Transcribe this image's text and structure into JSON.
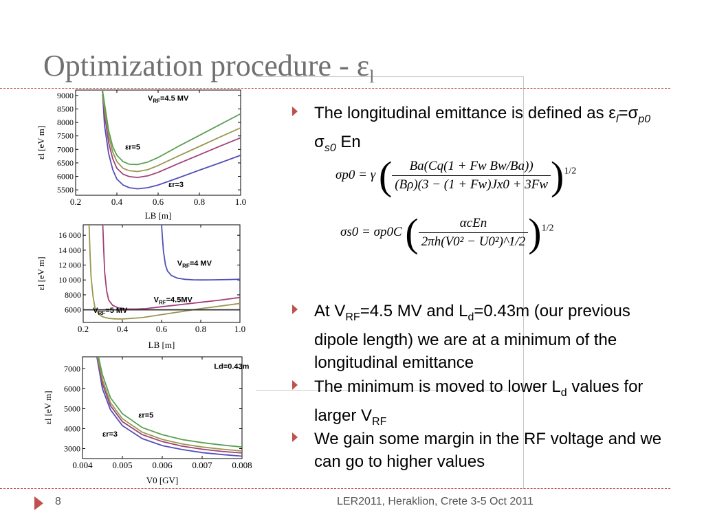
{
  "slide": {
    "title": "Optimization procedure - ε",
    "title_sub": "l",
    "page_number": "8",
    "footer": "LER2011, Heraklion, Crete   3-5 Oct 2011"
  },
  "bullets": [
    {
      "segments": [
        {
          "t": "The longitudinal emittance is defined as ε"
        },
        {
          "t": "l",
          "s": "sub-i"
        },
        {
          "t": "=σ"
        },
        {
          "t": "p0",
          "s": "sub-i"
        },
        {
          "t": " σ"
        },
        {
          "t": "s0",
          "s": "sub-i"
        },
        {
          "t": " En"
        }
      ]
    },
    {
      "segments": [
        {
          "t": "At V"
        },
        {
          "t": "RF",
          "s": "sub"
        },
        {
          "t": "=4.5 MV and L"
        },
        {
          "t": "d",
          "s": "sub"
        },
        {
          "t": "=0.43m (our previous dipole length) we are at a minimum of the longitudinal emittance"
        }
      ]
    },
    {
      "segments": [
        {
          "t": "The minimum is moved to lower L"
        },
        {
          "t": "d",
          "s": "sub"
        },
        {
          "t": " values for larger V"
        },
        {
          "t": "RF",
          "s": "sub"
        }
      ]
    },
    {
      "segments": [
        {
          "t": "We gain some margin in the RF voltage and we can go to higher values"
        }
      ]
    }
  ],
  "formulas": {
    "sigma_p0": {
      "lhs": "σp0 = γ",
      "num": "Ba(Cq(1 + Fw Bw/Ba))",
      "den": "(Bρ)(3 − (1 + Fw)Jx0 + 3Fw",
      "exp": "1/2"
    },
    "sigma_s0": {
      "lhs": "σs0 = σp0C",
      "num": "αcEn",
      "den": "2πh(V0² − U0²)^1/2",
      "exp": "1/2"
    }
  },
  "colors": {
    "title": "#707070",
    "accent": "#c0504d",
    "blue": "#5050b8",
    "magenta": "#a04078",
    "olive": "#9a9650",
    "green": "#58a050",
    "dark": "#303030"
  },
  "chart_data": [
    {
      "type": "line",
      "xlabel": "LB [m]",
      "ylabel": "εl [eV m]",
      "xlim": [
        0.2,
        1.0
      ],
      "ylim": [
        5300,
        9200
      ],
      "xticks": [
        0.2,
        0.4,
        0.6,
        0.8,
        1.0
      ],
      "xticklabels": [
        "0.2",
        "0.4",
        "0.6",
        "0.8",
        "1.0"
      ],
      "yticks": [
        5500,
        6000,
        6500,
        7000,
        7500,
        8000,
        8500,
        9000
      ],
      "yticklabels": [
        "5500",
        "6000",
        "6500",
        "7000",
        "7500",
        "8000",
        "8500",
        "9000"
      ],
      "series": [
        {
          "color": "#5050b8",
          "x": [
            0.33,
            0.34,
            0.36,
            0.38,
            0.4,
            0.43,
            0.46,
            0.5,
            0.55,
            0.6,
            0.7,
            0.8,
            0.9,
            1.0
          ],
          "values": [
            9200,
            7900,
            6850,
            6250,
            5900,
            5680,
            5580,
            5540,
            5580,
            5680,
            5950,
            6230,
            6500,
            6780
          ]
        },
        {
          "color": "#a04078",
          "x": [
            0.33,
            0.34,
            0.36,
            0.38,
            0.4,
            0.43,
            0.46,
            0.5,
            0.55,
            0.6,
            0.7,
            0.8,
            0.9,
            1.0
          ],
          "values": [
            9200,
            8300,
            7250,
            6650,
            6300,
            6080,
            5990,
            5960,
            6020,
            6150,
            6480,
            6800,
            7120,
            7430
          ]
        },
        {
          "color": "#9a9650",
          "x": [
            0.33,
            0.34,
            0.36,
            0.38,
            0.4,
            0.43,
            0.46,
            0.5,
            0.55,
            0.6,
            0.7,
            0.8,
            0.9,
            1.0
          ],
          "values": [
            9200,
            8500,
            7500,
            6900,
            6550,
            6300,
            6210,
            6180,
            6250,
            6400,
            6760,
            7110,
            7460,
            7800
          ]
        },
        {
          "color": "#58a050",
          "x": [
            0.33,
            0.34,
            0.36,
            0.38,
            0.4,
            0.43,
            0.46,
            0.5,
            0.55,
            0.6,
            0.7,
            0.8,
            0.9,
            1.0
          ],
          "values": [
            9200,
            8700,
            7700,
            7100,
            6780,
            6550,
            6450,
            6440,
            6530,
            6700,
            7120,
            7520,
            7920,
            8320
          ]
        }
      ],
      "annotations": [
        {
          "text": "VRF=4.5 MV",
          "main": "V",
          "sub": "RF",
          "rest": "=4.5 MV",
          "x": 0.55,
          "y": 8800
        },
        {
          "text": "εr=5",
          "x": 0.44,
          "y": 7000
        },
        {
          "text": "εr=3",
          "x": 0.65,
          "y": 5600
        }
      ]
    },
    {
      "type": "line",
      "xlabel": "LB [m]",
      "ylabel": "εl [eV m]",
      "xlim": [
        0.2,
        1.0
      ],
      "ylim": [
        4300,
        17400
      ],
      "xticks": [
        0.2,
        0.4,
        0.6,
        0.8,
        1.0
      ],
      "xticklabels": [
        "0.2",
        "0.4",
        "0.6",
        "0.8",
        "1.0"
      ],
      "yticks": [
        6000,
        8000,
        10000,
        12000,
        14000,
        16000
      ],
      "yticklabels": [
        "6000",
        "8000",
        "10 000",
        "12 000",
        "14 000",
        "16 000"
      ],
      "series": [
        {
          "color": "#9a9650",
          "x": [
            0.23,
            0.235,
            0.24,
            0.25,
            0.26,
            0.28,
            0.3,
            0.33,
            0.36,
            0.4,
            0.5,
            0.6,
            0.7,
            0.8,
            0.9,
            1.0
          ],
          "values": [
            17400,
            13500,
            10500,
            7800,
            6300,
            5400,
            5050,
            4850,
            4780,
            4760,
            4950,
            5350,
            5750,
            6150,
            6500,
            6850
          ]
        },
        {
          "color": "#a04078",
          "x": [
            0.3,
            0.305,
            0.31,
            0.32,
            0.33,
            0.35,
            0.38,
            0.42,
            0.47,
            0.52,
            0.6,
            0.7,
            0.8,
            0.9,
            1.0
          ],
          "values": [
            17400,
            14000,
            11000,
            8500,
            7300,
            6600,
            6250,
            6100,
            6100,
            6150,
            6400,
            6700,
            7000,
            7300,
            7650
          ]
        },
        {
          "color": "#5050b8",
          "x": [
            0.6,
            0.605,
            0.61,
            0.62,
            0.63,
            0.65,
            0.68,
            0.72,
            0.76,
            0.8,
            0.85,
            0.9,
            0.95,
            1.0
          ],
          "values": [
            17400,
            15500,
            13800,
            12000,
            11200,
            10600,
            10250,
            10080,
            10020,
            10000,
            10010,
            10030,
            10060,
            10100
          ]
        },
        {
          "color": "#303030",
          "x": [
            0.2,
            1.0
          ],
          "values": [
            6000,
            6000
          ]
        }
      ],
      "annotations": [
        {
          "text": "VRF=4 MV",
          "main": "V",
          "sub": "RF",
          "rest": "=4 MV",
          "x": 0.68,
          "y": 11900
        },
        {
          "text": "VRF=4.5MV",
          "main": "V",
          "sub": "RF",
          "rest": "=4.5MV",
          "x": 0.56,
          "y": 7000
        },
        {
          "text": "VRF=5 MV",
          "main": "V",
          "sub": "RF",
          "rest": "=5 MV",
          "x": 0.25,
          "y": 5600
        }
      ]
    },
    {
      "type": "line",
      "xlabel": "V0 [GV]",
      "ylabel": "εl [eV m]",
      "xlim": [
        0.004,
        0.008
      ],
      "ylim": [
        2500,
        7600
      ],
      "xticks": [
        0.004,
        0.005,
        0.006,
        0.007,
        0.008
      ],
      "xticklabels": [
        "0.004",
        "0.005",
        "0.006",
        "0.007",
        "0.008"
      ],
      "yticks": [
        3000,
        4000,
        5000,
        6000,
        7000
      ],
      "yticklabels": [
        "3000",
        "4000",
        "5000",
        "6000",
        "7000"
      ],
      "series": [
        {
          "color": "#5050b8",
          "x": [
            0.00436,
            0.0045,
            0.0047,
            0.005,
            0.0055,
            0.006,
            0.0065,
            0.007,
            0.0075,
            0.008
          ],
          "values": [
            7600,
            6000,
            4950,
            4150,
            3500,
            3150,
            2950,
            2800,
            2700,
            2620
          ]
        },
        {
          "color": "#a04078",
          "x": [
            0.00437,
            0.0045,
            0.0047,
            0.005,
            0.0055,
            0.006,
            0.0065,
            0.007,
            0.0075,
            0.008
          ],
          "values": [
            7600,
            6250,
            5150,
            4350,
            3700,
            3350,
            3120,
            2970,
            2860,
            2780
          ]
        },
        {
          "color": "#9a9650",
          "x": [
            0.00438,
            0.0045,
            0.0047,
            0.005,
            0.0055,
            0.006,
            0.0065,
            0.007,
            0.0075,
            0.008
          ],
          "values": [
            7600,
            6450,
            5300,
            4500,
            3820,
            3460,
            3230,
            3080,
            2970,
            2880
          ]
        },
        {
          "color": "#58a050",
          "x": [
            0.0044,
            0.0045,
            0.0047,
            0.005,
            0.0055,
            0.006,
            0.0065,
            0.007,
            0.0075,
            0.008
          ],
          "values": [
            7600,
            6700,
            5550,
            4750,
            4050,
            3700,
            3450,
            3300,
            3180,
            3080
          ]
        }
      ],
      "annotations": [
        {
          "text": "Ld=0.43m",
          "x": 0.0073,
          "y": 7000
        },
        {
          "text": "εr=5",
          "x": 0.0054,
          "y": 4550
        },
        {
          "text": "εr=3",
          "x": 0.0045,
          "y": 3600
        }
      ]
    }
  ]
}
